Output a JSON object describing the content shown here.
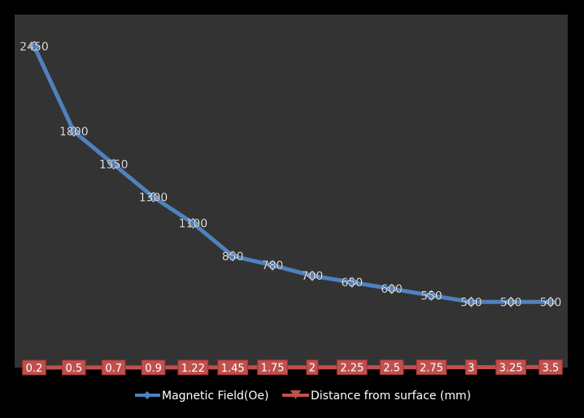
{
  "chart_data": {
    "type": "line",
    "title": "",
    "xlabel": "",
    "ylabel": "",
    "categories": [
      "0.2",
      "0.5",
      "0.7",
      "0.9",
      "1.22",
      "1.45",
      "1.75",
      "2",
      "2.25",
      "2.5",
      "2.75",
      "3",
      "3.25",
      "3.5"
    ],
    "series": [
      {
        "name": "Magnetic Field(Oe)",
        "values": [
          2450,
          1800,
          1550,
          1300,
          1100,
          850,
          780,
          700,
          650,
          600,
          550,
          500,
          500,
          500
        ],
        "color": "#4F81BD",
        "marker": "diamond",
        "data_labels": true
      },
      {
        "name": "Distance from surface (mm)",
        "values": [
          0.2,
          0.5,
          0.7,
          0.9,
          1.22,
          1.45,
          1.75,
          2,
          2.25,
          2.5,
          2.75,
          3,
          3.25,
          3.5
        ],
        "color": "#C0504D",
        "marker": "triangle-down",
        "data_labels": true
      }
    ],
    "ylim": [
      0,
      2500
    ],
    "grid": false,
    "y_axis_visible": false,
    "legend_position": "bottom",
    "plot_background": "#333333",
    "page_background": "#000000",
    "label_color": "#FFFFFF"
  }
}
